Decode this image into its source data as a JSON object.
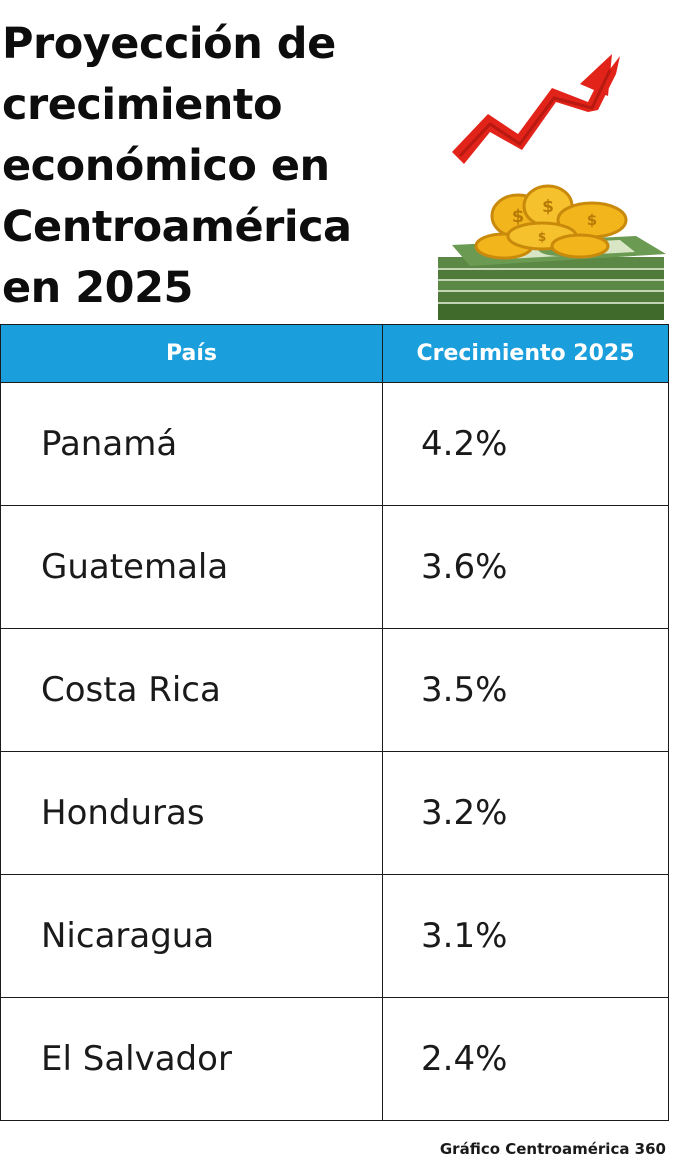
{
  "title": "Proyección de\ncrecimiento\neconómico en\nCentroamérica\nen 2025",
  "source": "Gráfico Centroamérica 360",
  "colors": {
    "header_bg": "#1a9fdc",
    "header_text": "#ffffff",
    "arrow": "#e2231a",
    "coin": "#f2b61c",
    "cash": "#4f7a3a"
  },
  "illustration": {
    "arrow_icon": "rising-red-arrow",
    "money_icon": "coins-on-cash-stack"
  },
  "chart_data": {
    "type": "table",
    "title": "Proyección de crecimiento económico en Centroamérica en 2025",
    "columns": [
      "País",
      "Crecimiento 2025"
    ],
    "rows": [
      {
        "country": "Panamá",
        "growth": "4.2%"
      },
      {
        "country": "Guatemala",
        "growth": "3.6%"
      },
      {
        "country": "Costa Rica",
        "growth": "3.5%"
      },
      {
        "country": "Honduras",
        "growth": "3.2%"
      },
      {
        "country": "Nicaragua",
        "growth": "3.1%"
      },
      {
        "country": "El Salvador",
        "growth": "2.4%"
      }
    ]
  }
}
